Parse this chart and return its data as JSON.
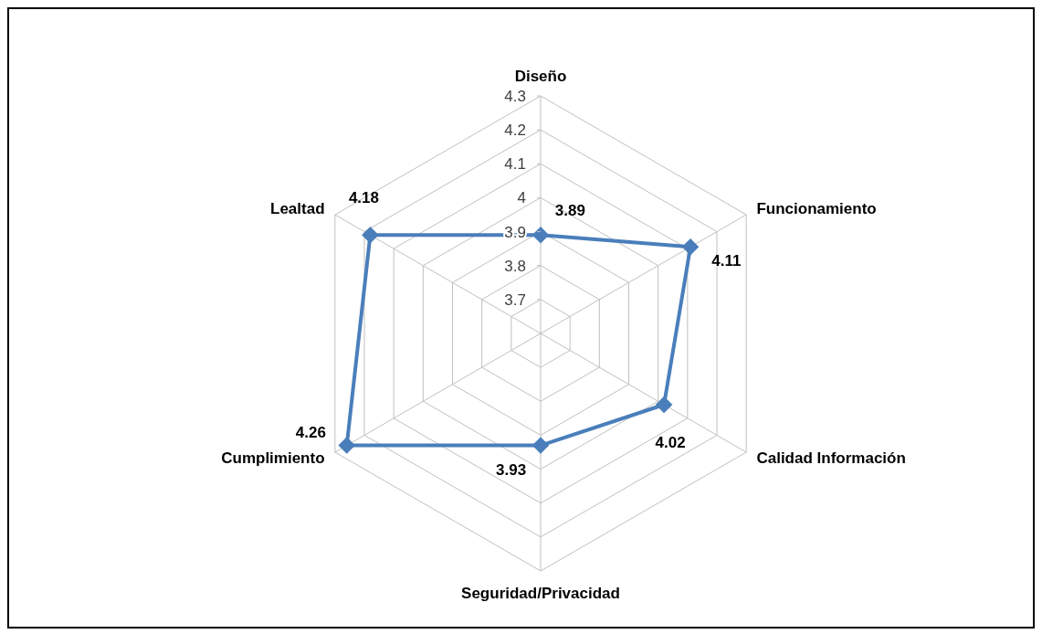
{
  "chart_data": {
    "type": "radar",
    "categories": [
      "Diseño",
      "Funcionamiento",
      "Calidad Información",
      "Seguridad/Privacidad",
      "Cumplimiento",
      "Lealtad"
    ],
    "series": [
      {
        "color": "#4a7ebb",
        "values": [
          3.89,
          4.11,
          4.02,
          3.93,
          4.26,
          4.18
        ]
      }
    ],
    "ylim": [
      3.6,
      4.3
    ],
    "yticks": [
      3.7,
      3.8,
      3.9,
      4,
      4.1,
      4.2,
      4.3
    ],
    "grid": true,
    "data_labels": true,
    "marker": "diamond"
  }
}
